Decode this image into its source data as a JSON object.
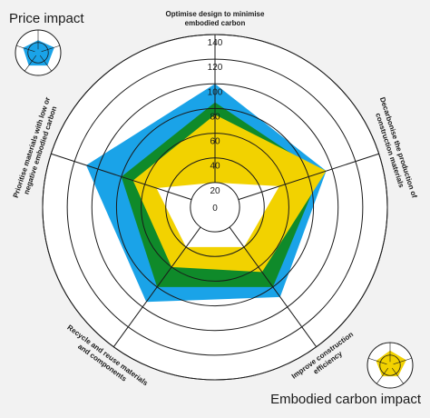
{
  "legend": {
    "price_impact_label": "Price impact",
    "embodied_carbon_label": "Embodied carbon impact"
  },
  "colors": {
    "background": "#f2f2f2",
    "blue": "#1aa3e8",
    "green": "#0f8a2a",
    "yellow": "#f2d200",
    "ring": "#1a1a1a",
    "inner_white": "#ffffff"
  },
  "chart_data": {
    "type": "radar",
    "axes": [
      {
        "label_lines": [
          "Optimise design to minimise",
          "embodied carbon"
        ]
      },
      {
        "label_lines": [
          "Decarbonise the production of",
          "construction materials"
        ]
      },
      {
        "label_lines": [
          "Improve construction",
          "efficiency"
        ]
      },
      {
        "label_lines": [
          "Recycle and reuse materials",
          "and components"
        ]
      },
      {
        "label_lines": [
          "Prioritise materials with low or",
          "negative embodied carbon"
        ]
      }
    ],
    "ticks": [
      "0",
      "20",
      "40",
      "60",
      "80",
      "100",
      "120",
      "140"
    ],
    "tick_values": [
      0,
      20,
      40,
      60,
      80,
      100,
      120,
      140
    ],
    "rmin": 0,
    "rmax": 140,
    "inner_hole": 20,
    "series": [
      {
        "color_key": "blue",
        "values": [
          100,
          95,
          90,
          95,
          110
        ]
      },
      {
        "color_key": "green",
        "values": [
          85,
          90,
          80,
          80,
          80
        ]
      },
      {
        "color_key": "yellow",
        "values": [
          75,
          95,
          65,
          60,
          70
        ]
      },
      {
        "color_key": "inner_white",
        "values": [
          20,
          55,
          40,
          40,
          50
        ]
      }
    ]
  }
}
